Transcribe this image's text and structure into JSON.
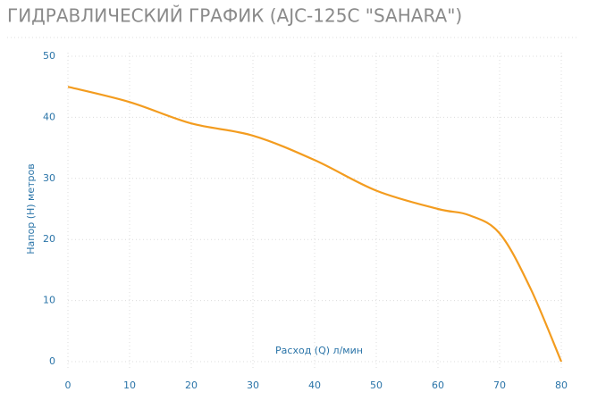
{
  "chart_data": {
    "type": "line",
    "title": "ГИДРАВЛИЧЕСКИЙ ГРАФИК (AJC-125C \"SAHARA\")",
    "x_label": "Расход (Q) л/мин",
    "y_label": "Напор (H) метров",
    "x": [
      0,
      10,
      20,
      30,
      40,
      50,
      60,
      65,
      70,
      75,
      80
    ],
    "series": [
      {
        "color": "#f39c1f",
        "values": [
          45,
          42.5,
          39,
          37,
          33,
          28,
          25,
          24,
          21,
          12,
          0
        ]
      }
    ],
    "xlim": [
      0,
      80
    ],
    "xticks": [
      0,
      10,
      20,
      30,
      40,
      50,
      60,
      70,
      80
    ],
    "ylim": [
      0,
      50
    ],
    "yticks": [
      0,
      10,
      20,
      30,
      40,
      50
    ],
    "grid": true
  }
}
